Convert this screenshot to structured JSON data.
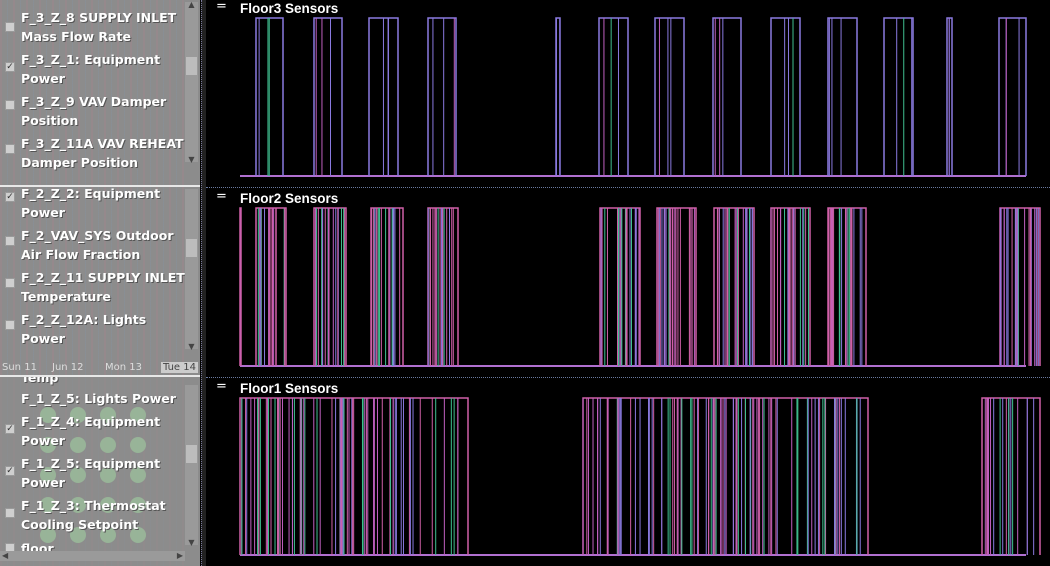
{
  "left_panels": [
    {
      "items": [
        {
          "label": "F_3_Z_8 SUPPLY INLET\nMass Flow Rate",
          "checked": false
        },
        {
          "label": "F_3_Z_1: Equipment\nPower",
          "checked": true
        },
        {
          "label": "F_3_Z_9 VAV Damper\nPosition",
          "checked": false
        },
        {
          "label": "F_3_Z_11A VAV REHEAT\nDamper Position",
          "checked": false
        }
      ]
    },
    {
      "items": [
        {
          "label": "F_2_Z_2: Equipment\nPower",
          "checked": true
        },
        {
          "label": "F_2_VAV_SYS Outdoor\nAir Flow Fraction",
          "checked": false
        },
        {
          "label": "F_2_Z_11 SUPPLY INLET\nTemperature",
          "checked": false
        },
        {
          "label": "F_2_Z_12A: Lights\nPower",
          "checked": false
        }
      ],
      "dates": [
        "Sun 11",
        "Jun 12",
        "Mon 13",
        "Tue 14"
      ]
    },
    {
      "items": [
        {
          "label": "Temp",
          "checked": false
        },
        {
          "label": "F_1_Z_5: Lights Power",
          "checked": false
        },
        {
          "label": "F_1_Z_4: Equipment\nPower",
          "checked": true
        },
        {
          "label": "F_1_Z_5: Equipment\nPower",
          "checked": true
        },
        {
          "label": "F_1_Z_3: Thermostat\nCooling Setpoint",
          "checked": false
        },
        {
          "label": "floor",
          "checked": false
        }
      ]
    }
  ],
  "panels": [
    {
      "title": "Floor3 Sensors",
      "menu": "="
    },
    {
      "title": "Floor2 Sensors",
      "menu": "="
    },
    {
      "title": "Floor1 Sensors",
      "menu": "="
    }
  ],
  "colors": {
    "purple": "#8a7ae0",
    "pink": "#d060a8",
    "green": "#40c090",
    "magenta": "#c060c0",
    "baseline": "#b070d0"
  }
}
